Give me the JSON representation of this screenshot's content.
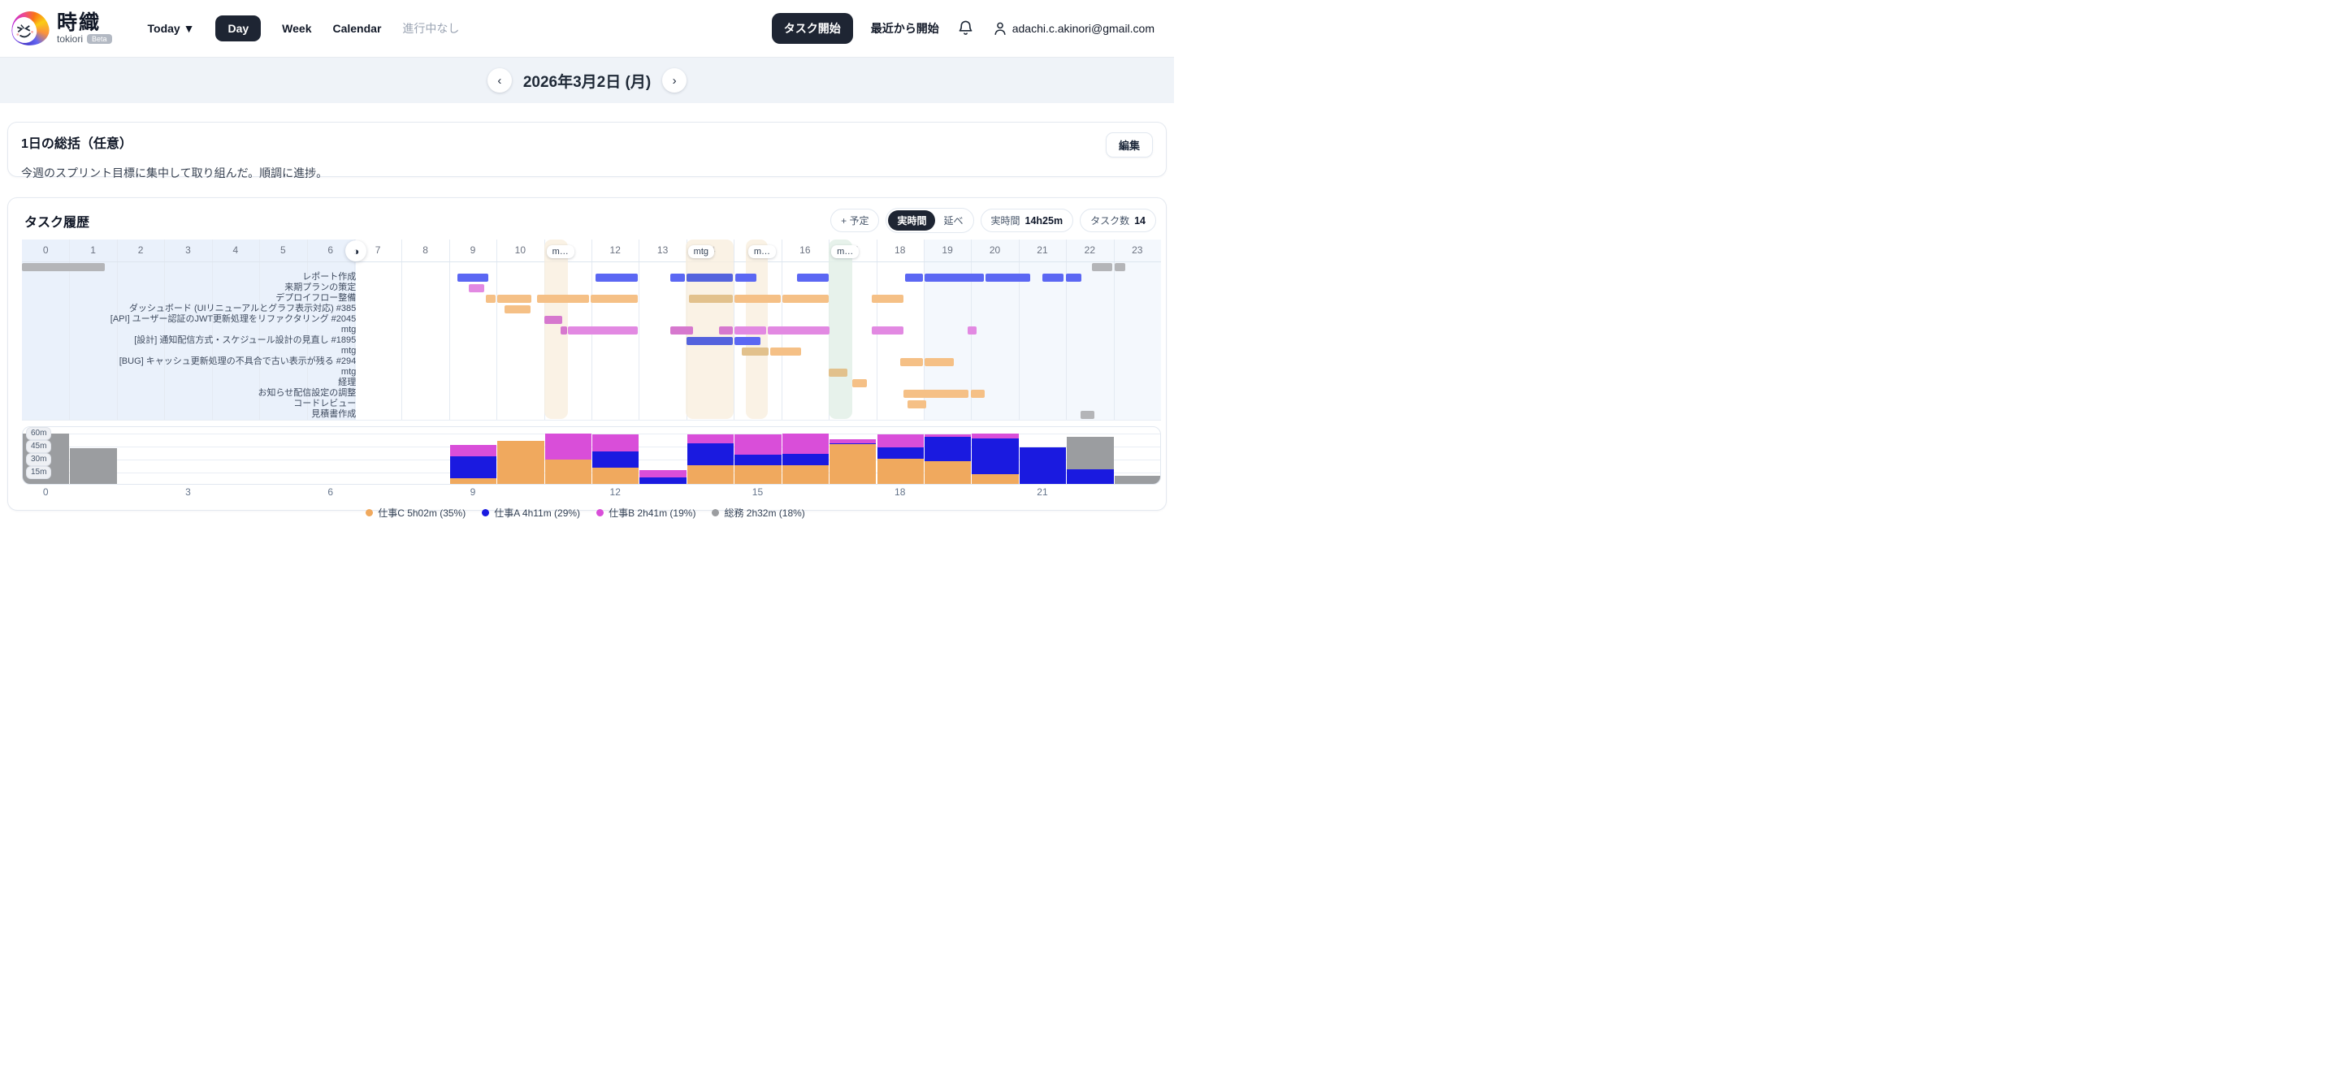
{
  "header": {
    "brand": {
      "title": "時織",
      "subtitle": "tokiori",
      "badge": "Beta"
    },
    "nav": [
      {
        "label": "Today ▼",
        "active": false,
        "muted": false
      },
      {
        "label": "Day",
        "active": true,
        "muted": false
      },
      {
        "label": "Week",
        "active": false,
        "muted": false
      },
      {
        "label": "Calendar",
        "active": false,
        "muted": false
      },
      {
        "label": "進行中なし",
        "active": false,
        "muted": true
      }
    ],
    "actions": {
      "start_task": "タスク開始",
      "start_recent": "最近から開始",
      "user_email": "adachi.c.akinori@gmail.com"
    }
  },
  "date_bar": {
    "prev": "‹",
    "next": "›",
    "title": "2026年3月2日 (月)"
  },
  "summary": {
    "title": "1日の総括（任意）",
    "edit_label": "編集",
    "body": "今週のスプリント目標に集中して取り組んだ。順調に進捗。"
  },
  "history": {
    "title": "タスク履歴",
    "add_plan_label": "+ 予定",
    "mode_active": "実時間",
    "mode_alt": "延べ",
    "stat_time_label": "実時間",
    "stat_time_value": "14h25m",
    "stat_count_label": "タスク数",
    "stat_count_value": "14",
    "panel_toggle_glyph": "◑"
  },
  "chart_data": {
    "type": "gantt+stacked-bar",
    "hours": [
      0,
      1,
      2,
      3,
      4,
      5,
      6,
      7,
      8,
      9,
      10,
      11,
      12,
      13,
      14,
      15,
      16,
      17,
      18,
      19,
      20,
      21,
      22,
      23
    ],
    "colors": {
      "gantt": {
        "A": "#5b67f3",
        "A2": "#5463dd",
        "B": "#e289e2",
        "B2": "#d678ce",
        "C": "#f5c086",
        "C2": "#e2c18c",
        "G": "#b4b5b8"
      },
      "hist": {
        "C": "#f0a95e",
        "A": "#1a1ae0",
        "B": "#d94ed9",
        "G": "#9b9da0"
      },
      "night_left": "#eaf1fb",
      "night_right": "#f4f8fd",
      "event_beige": "rgba(248,237,220,0.75)",
      "event_green": "rgba(227,240,231,0.85)"
    },
    "night_shades": [
      {
        "start": 0,
        "end": 7.04
      },
      {
        "start": 19,
        "end": 24
      }
    ],
    "gantt": {
      "label_edge_hour": 7.04,
      "rows": [
        {
          "label": "",
          "segments": [
            [
              0,
              1.75,
              "G"
            ],
            [
              22.55,
              22.99,
              "G"
            ],
            [
              23.03,
              23.25,
              "G"
            ]
          ]
        },
        {
          "label": "レポート作成",
          "segments": [
            [
              9.17,
              9.83,
              "A"
            ],
            [
              12.08,
              12.98,
              "A"
            ],
            [
              13.66,
              13.97,
              "A"
            ],
            [
              14.0,
              14.99,
              "A2"
            ],
            [
              15.03,
              15.49,
              "A"
            ],
            [
              16.33,
              17.0,
              "A"
            ],
            [
              18.6,
              18.99,
              "A"
            ],
            [
              19.02,
              20.28,
              "A"
            ],
            [
              20.31,
              21.25,
              "A"
            ],
            [
              21.5,
              21.96,
              "A"
            ],
            [
              22.0,
              22.33,
              "A"
            ]
          ]
        },
        {
          "label": "来期プランの策定",
          "segments": [
            [
              9.42,
              9.75,
              "B"
            ]
          ]
        },
        {
          "label": "デプロイフロー整備",
          "segments": [
            [
              9.77,
              9.99,
              "C"
            ],
            [
              10.02,
              10.74,
              "C"
            ],
            [
              10.85,
              11.96,
              "C"
            ],
            [
              11.99,
              12.98,
              "C"
            ],
            [
              14.05,
              14.99,
              "C2"
            ],
            [
              15.02,
              15.99,
              "C"
            ],
            [
              16.02,
              17.0,
              "C"
            ],
            [
              17.9,
              18.58,
              "C"
            ]
          ]
        },
        {
          "label": "ダッシュボード (UIリニューアルとグラフ表示対応) #385",
          "segments": [
            [
              10.17,
              10.73,
              "C"
            ]
          ]
        },
        {
          "label": "[API] ユーザー認証のJWT更新処理をリファクタリング #2045",
          "segments": [
            [
              11.0,
              11.4,
              "B2"
            ]
          ]
        },
        {
          "label": "mtg",
          "segments": [
            [
              11.35,
              11.49,
              "B2"
            ],
            [
              11.5,
              12.98,
              "B"
            ],
            [
              13.66,
              14.14,
              "B2"
            ],
            [
              14.69,
              14.99,
              "B2"
            ],
            [
              15.02,
              15.69,
              "B"
            ],
            [
              15.72,
              17.02,
              "B"
            ],
            [
              17.9,
              18.58,
              "B"
            ],
            [
              19.93,
              20.12,
              "B"
            ]
          ]
        },
        {
          "label": "[設計] 通知配信方式・スケジュール設計の見直し #1895",
          "segments": [
            [
              14.0,
              14.99,
              "A2"
            ],
            [
              15.02,
              15.57,
              "A"
            ]
          ]
        },
        {
          "label": "mtg",
          "segments": [
            [
              15.17,
              15.74,
              "C2"
            ],
            [
              15.77,
              16.42,
              "C"
            ]
          ]
        },
        {
          "label": "[BUG] キャッシュ更新処理の不具合で古い表示が残る #294",
          "segments": [
            [
              18.5,
              18.99,
              "C"
            ],
            [
              19.02,
              19.65,
              "C"
            ]
          ]
        },
        {
          "label": "mtg",
          "segments": [
            [
              17.0,
              17.4,
              "C2"
            ]
          ]
        },
        {
          "label": "経理",
          "segments": [
            [
              17.5,
              17.82,
              "C"
            ]
          ]
        },
        {
          "label": "お知らせ配信設定の調整",
          "segments": [
            [
              18.58,
              19.96,
              "C"
            ],
            [
              19.99,
              20.3,
              "C"
            ]
          ]
        },
        {
          "label": "コードレビュー",
          "segments": [
            [
              18.66,
              19.06,
              "C"
            ]
          ]
        },
        {
          "label": "見積書作成",
          "segments": [
            [
              22.3,
              22.6,
              "G"
            ]
          ]
        }
      ],
      "events": [
        {
          "start": 11.0,
          "end": 11.5,
          "label": "m…",
          "kind": "beige"
        },
        {
          "start": 13.98,
          "end": 15.0,
          "label": "mtg",
          "kind": "beige"
        },
        {
          "start": 15.25,
          "end": 15.72,
          "label": "m…",
          "kind": "beige"
        },
        {
          "start": 17.0,
          "end": 17.5,
          "label": "m…",
          "kind": "green"
        }
      ]
    },
    "histogram": {
      "unit": "minutes per hour",
      "stack_order": [
        "C",
        "A",
        "B",
        "G"
      ],
      "values": [
        {
          "h": 0,
          "C": 0,
          "A": 0,
          "B": 0,
          "G": 60
        },
        {
          "h": 1,
          "C": 0,
          "A": 0,
          "B": 0,
          "G": 43
        },
        {
          "h": 2,
          "C": 0,
          "A": 0,
          "B": 0,
          "G": 0
        },
        {
          "h": 3,
          "C": 0,
          "A": 0,
          "B": 0,
          "G": 0
        },
        {
          "h": 4,
          "C": 0,
          "A": 0,
          "B": 0,
          "G": 0
        },
        {
          "h": 5,
          "C": 0,
          "A": 0,
          "B": 0,
          "G": 0
        },
        {
          "h": 6,
          "C": 0,
          "A": 0,
          "B": 0,
          "G": 0
        },
        {
          "h": 7,
          "C": 0,
          "A": 0,
          "B": 0,
          "G": 0
        },
        {
          "h": 8,
          "C": 0,
          "A": 0,
          "B": 0,
          "G": 0
        },
        {
          "h": 9,
          "C": 8,
          "A": 26,
          "B": 13,
          "G": 0
        },
        {
          "h": 10,
          "C": 52,
          "A": 0,
          "B": 0,
          "G": 0
        },
        {
          "h": 11,
          "C": 30,
          "A": 0,
          "B": 30,
          "G": 0
        },
        {
          "h": 12,
          "C": 21,
          "A": 18,
          "B": 20,
          "G": 0
        },
        {
          "h": 13,
          "C": 0,
          "A": 9,
          "B": 9,
          "G": 0
        },
        {
          "h": 14,
          "C": 23,
          "A": 26,
          "B": 10,
          "G": 0
        },
        {
          "h": 15,
          "C": 23,
          "A": 13,
          "B": 23,
          "G": 0
        },
        {
          "h": 16,
          "C": 23,
          "A": 14,
          "B": 23,
          "G": 0
        },
        {
          "h": 17,
          "C": 48,
          "A": 1,
          "B": 4,
          "G": 0
        },
        {
          "h": 18,
          "C": 31,
          "A": 13,
          "B": 15,
          "G": 0
        },
        {
          "h": 19,
          "C": 28,
          "A": 28,
          "B": 3,
          "G": 0
        },
        {
          "h": 20,
          "C": 13,
          "A": 41,
          "B": 6,
          "G": 0
        },
        {
          "h": 21,
          "C": 0,
          "A": 44,
          "B": 0,
          "G": 0
        },
        {
          "h": 22,
          "C": 0,
          "A": 19,
          "B": 0,
          "G": 37
        },
        {
          "h": 23,
          "C": 0,
          "A": 0,
          "B": 0,
          "G": 11
        }
      ],
      "y_chips": [
        "60m",
        "45m",
        "30m",
        "15m"
      ],
      "x_ticks": [
        0,
        3,
        6,
        9,
        12,
        15,
        18,
        21
      ]
    },
    "legend": [
      {
        "key": "C",
        "label": "仕事C 5h02m (35%)"
      },
      {
        "key": "A",
        "label": "仕事A 4h11m (29%)"
      },
      {
        "key": "B",
        "label": "仕事B 2h41m (19%)"
      },
      {
        "key": "G",
        "label": "総務 2h32m (18%)"
      }
    ]
  }
}
